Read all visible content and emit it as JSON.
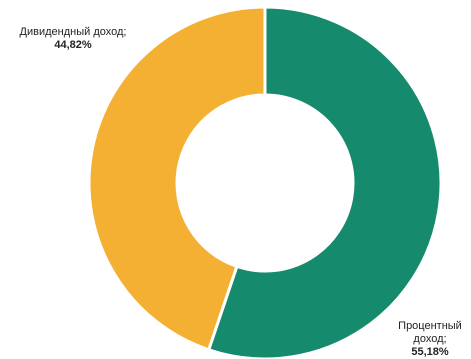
{
  "chart_data": {
    "type": "pie",
    "style": "donut",
    "slices": [
      {
        "label": "Процентный доход;",
        "label_lines": [
          "Процентный",
          "доход;"
        ],
        "value": 55.18,
        "value_text": "55,18%",
        "color": "#168a6c"
      },
      {
        "label": "Дивидендный доход;",
        "label_lines": [
          "Дивидендный доход;"
        ],
        "value": 44.82,
        "value_text": "44,82%",
        "color": "#f4b033"
      }
    ],
    "legend": "none"
  }
}
